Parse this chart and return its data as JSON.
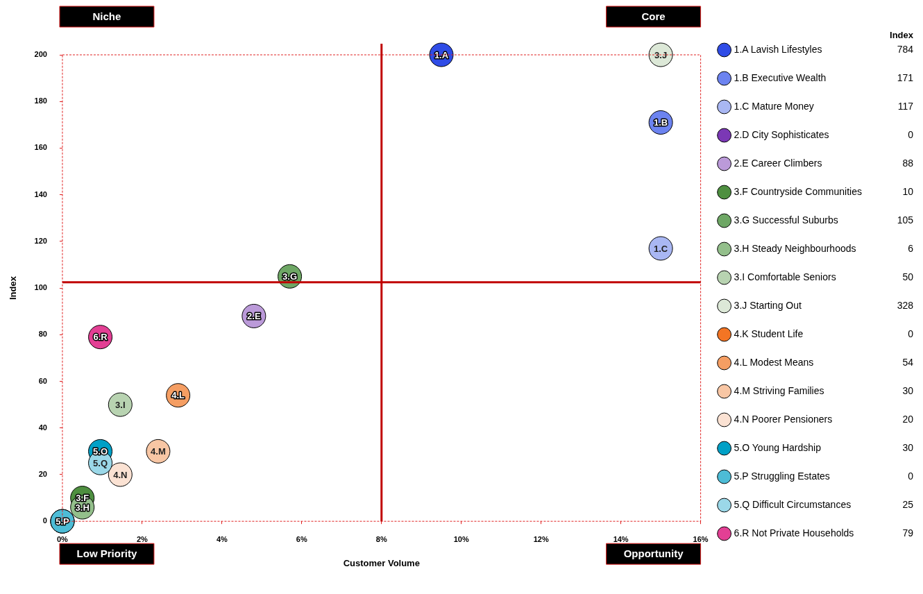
{
  "chart_data": {
    "type": "scatter",
    "xlabel": "Customer Volume",
    "ylabel": "Index",
    "legend_title": "Index",
    "legend": "right",
    "marker": "circle",
    "xlim": [
      0,
      16
    ],
    "xticks": [
      {
        "value": 0,
        "label": "0%"
      },
      {
        "value": 2,
        "label": "2%"
      },
      {
        "value": 4,
        "label": "4%"
      },
      {
        "value": 6,
        "label": "6%"
      },
      {
        "value": 8,
        "label": "8%"
      },
      {
        "value": 10,
        "label": "10%"
      },
      {
        "value": 12,
        "label": "12%"
      },
      {
        "value": 14,
        "label": "14%"
      },
      {
        "value": 16,
        "label": "16%"
      }
    ],
    "ylim": [
      0,
      200
    ],
    "yticks": [
      0,
      20,
      40,
      60,
      80,
      100,
      120,
      140,
      160,
      180,
      200
    ],
    "ref_lines": [
      {
        "axis": "x",
        "value": 8,
        "color": "#c00000"
      },
      {
        "axis": "y",
        "value": 102.5,
        "color": "#c00000"
      }
    ],
    "series": [
      {
        "name": "1.A Lavish Lifestyles",
        "color": "#2f4ce6",
        "x": [
          9.5
        ],
        "values": [
          200
        ]
      },
      {
        "name": "1.B Executive Wealth",
        "color": "#6c83f0",
        "x": [
          15
        ],
        "values": [
          171
        ]
      },
      {
        "name": "1.C Mature Money",
        "color": "#a9b7f3",
        "x": [
          15
        ],
        "values": [
          117
        ]
      },
      {
        "name": "2.D City Sophisticates",
        "color": "#7b38b5",
        "x": [
          0
        ],
        "values": [
          0
        ]
      },
      {
        "name": "2.E Career Climbers",
        "color": "#bb9ad9",
        "x": [
          4.8
        ],
        "values": [
          88
        ]
      },
      {
        "name": "3.F Countryside Communities",
        "color": "#4e8f40",
        "x": [
          0.5
        ],
        "values": [
          10
        ]
      },
      {
        "name": "3.G Successful Suburbs",
        "color": "#6ea765",
        "x": [
          5.7
        ],
        "values": [
          105
        ]
      },
      {
        "name": "3.H Steady Neighbourhoods",
        "color": "#93bf8b",
        "x": [
          0.5
        ],
        "values": [
          6
        ]
      },
      {
        "name": "3.I Comfortable Seniors",
        "color": "#b8d3b1",
        "x": [
          1.45
        ],
        "values": [
          50
        ]
      },
      {
        "name": "3.J Starting Out",
        "color": "#dce8d7",
        "x": [
          15
        ],
        "values": [
          200
        ]
      },
      {
        "name": "4.K Student Life",
        "color": "#f37524",
        "x": [
          0
        ],
        "values": [
          0
        ]
      },
      {
        "name": "4.L Modest Means",
        "color": "#f59e63",
        "x": [
          2.9
        ],
        "values": [
          54
        ]
      },
      {
        "name": "4.M Striving Families",
        "color": "#f8c6a4",
        "x": [
          2.4
        ],
        "values": [
          30
        ]
      },
      {
        "name": "4.N Poorer Pensioners",
        "color": "#fbe2d3",
        "x": [
          1.45
        ],
        "values": [
          20
        ]
      },
      {
        "name": "5.O Young Hardship",
        "color": "#00a0c6",
        "x": [
          0.95
        ],
        "values": [
          30
        ]
      },
      {
        "name": "5.P Struggling Estates",
        "color": "#4dbcd6",
        "x": [
          0
        ],
        "values": [
          0
        ]
      },
      {
        "name": "5.Q Difficult Circumstances",
        "color": "#9bd8e8",
        "x": [
          0.95
        ],
        "values": [
          25
        ]
      },
      {
        "name": "6.R Not Private Households",
        "color": "#e33f94",
        "x": [
          0.95
        ],
        "values": [
          79
        ]
      }
    ],
    "annotations": [
      "Niche",
      "Core",
      "Low Priority",
      "Opportunity",
      "784",
      "171",
      "117",
      "0",
      "88",
      "10",
      "105",
      "6",
      "50",
      "328",
      "0",
      "54",
      "30",
      "20",
      "30",
      "0",
      "25",
      "79",
      {
        "text": "1.A",
        "x": 9.5,
        "y": 200
      },
      {
        "text": "1.B",
        "x": 15,
        "y": 171
      },
      {
        "text": "1.C",
        "x": 15,
        "y": 117
      },
      {
        "text": "2.E",
        "x": 4.8,
        "y": 88
      },
      {
        "text": "3.F",
        "x": 0.5,
        "y": 10
      },
      {
        "text": "3.G",
        "x": 5.7,
        "y": 105
      },
      {
        "text": "3.H",
        "x": 0.5,
        "y": 6
      },
      {
        "text": "3.I",
        "x": 1.45,
        "y": 50
      },
      {
        "text": "3.J",
        "x": 15,
        "y": 200
      },
      {
        "text": "4.L",
        "x": 2.9,
        "y": 54
      },
      {
        "text": "4.M",
        "x": 2.4,
        "y": 30
      },
      {
        "text": "4.N",
        "x": 1.45,
        "y": 20
      },
      {
        "text": "5.O",
        "x": 0.95,
        "y": 30
      },
      {
        "text": "5.P",
        "x": 0,
        "y": 0
      },
      {
        "text": "5.Q",
        "x": 0.95,
        "y": 25
      },
      {
        "text": "6.R",
        "x": 0.95,
        "y": 79
      }
    ]
  }
}
